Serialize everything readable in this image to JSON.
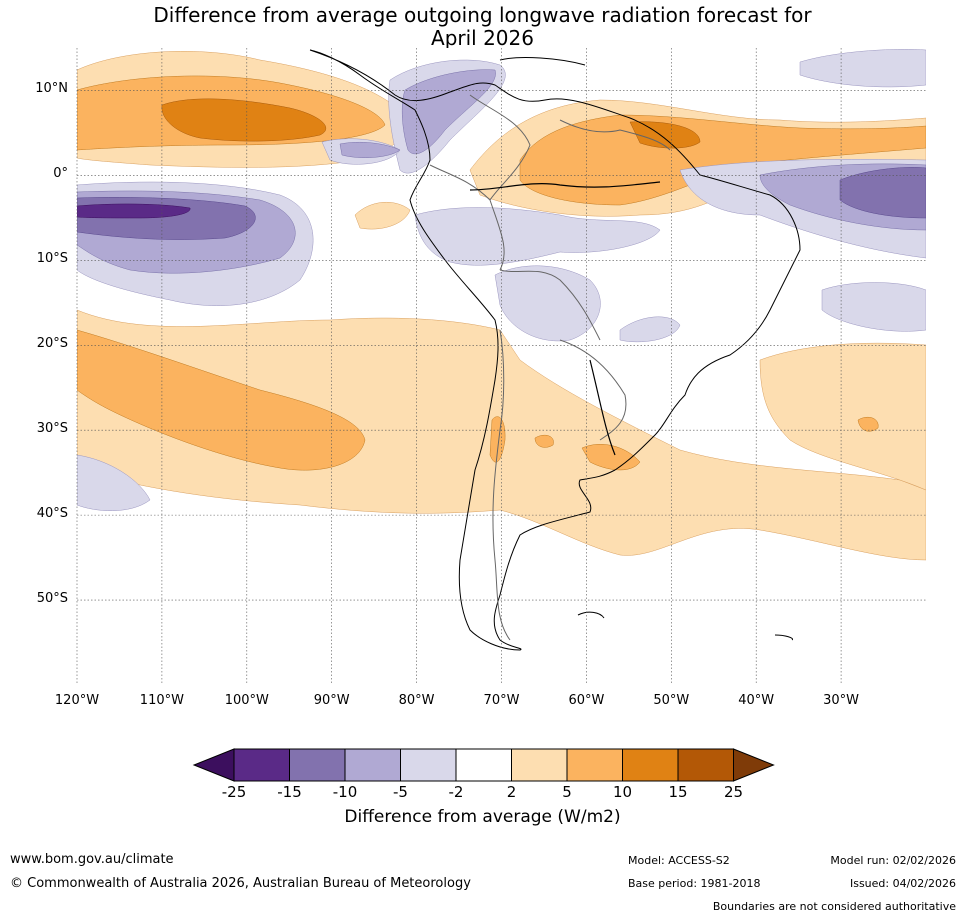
{
  "title": {
    "line1": "Difference from average outgoing longwave radiation forecast for",
    "line2": "April 2026"
  },
  "map": {
    "lat_labels": [
      "10°N",
      "0°",
      "10°S",
      "20°S",
      "30°S",
      "40°S",
      "50°S"
    ],
    "lat_values": [
      10,
      0,
      -10,
      -20,
      -30,
      -40,
      -50
    ],
    "lon_labels": [
      "120°W",
      "110°W",
      "100°W",
      "90°W",
      "80°W",
      "70°W",
      "60°W",
      "50°W",
      "40°W",
      "30°W"
    ],
    "lon_values": [
      -120,
      -110,
      -100,
      -90,
      -80,
      -70,
      -60,
      -50,
      -40,
      -30
    ],
    "extent": {
      "lon_min": -120,
      "lon_max": -20,
      "lat_min": -60,
      "lat_max": 15
    }
  },
  "colorbar": {
    "labels": [
      "-25",
      "-15",
      "-10",
      "-5",
      "-2",
      "2",
      "5",
      "10",
      "15",
      "25"
    ],
    "colors": [
      "#3c0f5e",
      "#5a2a87",
      "#8272ae",
      "#b0a9d3",
      "#d9d8ea",
      "#ffffff",
      "#fddeb1",
      "#fbb35f",
      "#e08214",
      "#b35806",
      "#7f3b08"
    ],
    "title": "Difference from average (W/m2)"
  },
  "footer": {
    "website": "www.bom.gov.au/climate",
    "copyright": "© Commonwealth of Australia 2026, Australian Bureau of Meteorology",
    "model": "Model: ACCESS-S2",
    "base_period": "Base period: 1981-2018",
    "model_run": "Model run: 02/02/2026",
    "issued": "Issued: 04/02/2026",
    "disclaimer": "Boundaries are not considered authoritative"
  }
}
